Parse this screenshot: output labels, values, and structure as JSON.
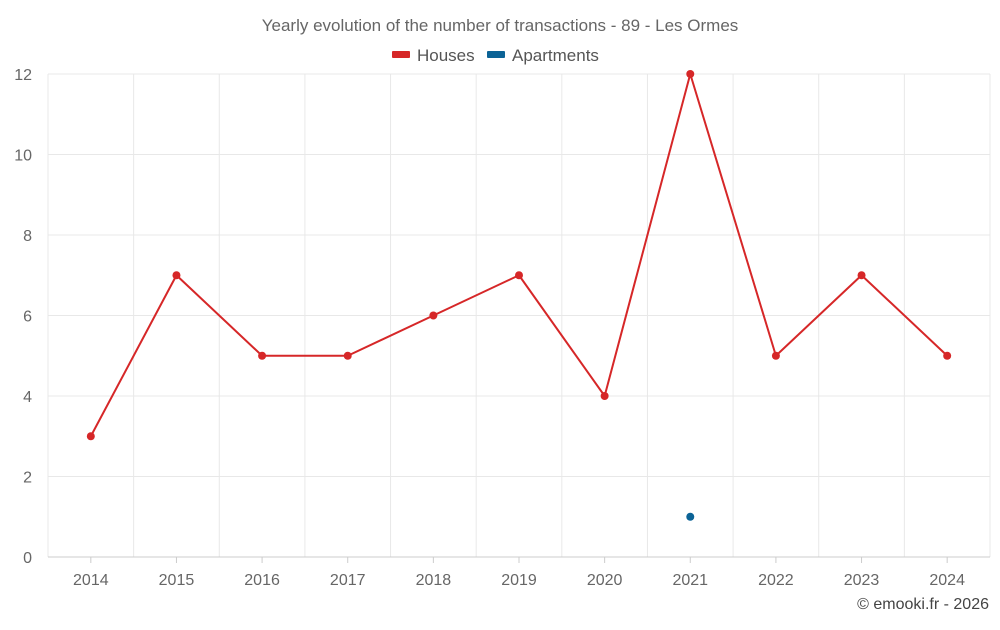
{
  "chart_data": {
    "type": "line",
    "title": "Yearly evolution of the number of transactions - 89 - Les Ormes",
    "categories": [
      "2014",
      "2015",
      "2016",
      "2017",
      "2018",
      "2019",
      "2020",
      "2021",
      "2022",
      "2023",
      "2024"
    ],
    "series": [
      {
        "name": "Houses",
        "color": "#d62728",
        "values": [
          3,
          7,
          5,
          5,
          6,
          7,
          4,
          12,
          5,
          7,
          5
        ]
      },
      {
        "name": "Apartments",
        "color": "#0b6396",
        "values": [
          null,
          null,
          null,
          null,
          null,
          null,
          null,
          1,
          null,
          null,
          null
        ]
      }
    ],
    "ylim": [
      0,
      12
    ],
    "yticks": [
      0,
      2,
      4,
      6,
      8,
      10,
      12
    ],
    "xlabel": "",
    "ylabel": "",
    "grid": true,
    "legend": "top-center"
  },
  "credit": "© emooki.fr - 2026"
}
